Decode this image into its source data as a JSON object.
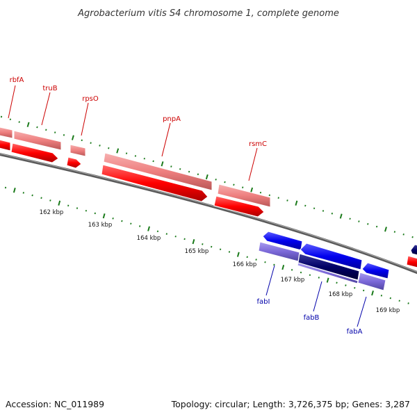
{
  "title": "Agrobacterium vitis S4 chromosome 1, complete genome",
  "footer": {
    "accession": "Accession: NC_011989",
    "summary": "Topology: circular; Length: 3,726,375 bp; Genes: 3,287"
  },
  "colors": {
    "forward_gene": "#ff0000",
    "forward_gene_light": "#f08080",
    "reverse_gene": "#0000ee",
    "reverse_gene_light": "#7b68d8",
    "reverse_gene_dark": "#000066",
    "backbone": "#777777",
    "ticks": "#1a7a1a",
    "forward_label": "#cc0000",
    "reverse_label": "#0000aa"
  },
  "scale_labels": [
    "162 kbp",
    "163 kbp",
    "164 kbp",
    "165 kbp",
    "166 kbp",
    "167 kbp",
    "168 kbp",
    "169 kbp"
  ],
  "genes": {
    "forward": [
      "rbfA",
      "truB",
      "rpsO",
      "pnpA",
      "rsmC"
    ],
    "reverse": [
      "fabI",
      "fabB",
      "fabA"
    ]
  }
}
